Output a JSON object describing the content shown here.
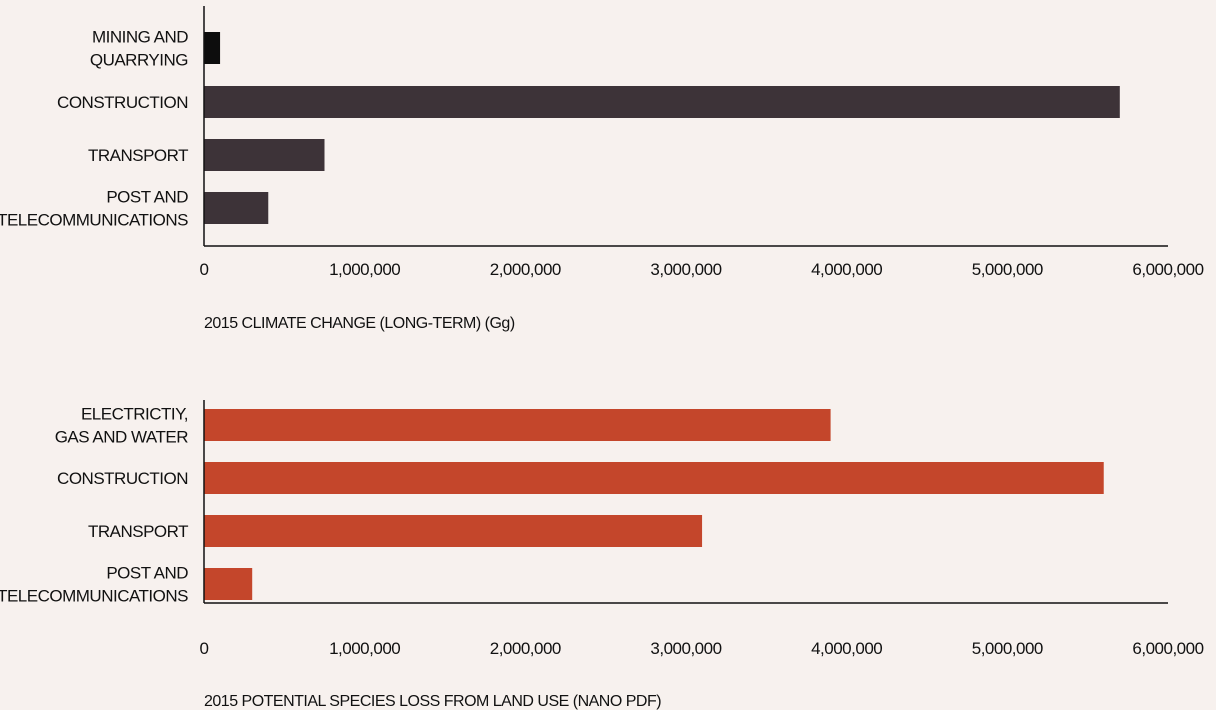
{
  "chart_data": [
    {
      "type": "bar",
      "orientation": "horizontal",
      "categories": [
        [
          "MINING AND",
          "QUARRYING"
        ],
        [
          "CONSTRUCTION"
        ],
        [
          "TRANSPORT"
        ],
        [
          "POST AND",
          "TELECOMMUNICATIONS"
        ]
      ],
      "values": [
        100000,
        5700000,
        750000,
        400000
      ],
      "bar_colors": [
        "#0d0d0d",
        "#3d3338",
        "#3d3338",
        "#3d3338"
      ],
      "xlim": [
        0,
        6000000
      ],
      "xticks": [
        "0",
        "1,000,000",
        "2,000,000",
        "3,000,000",
        "4,000,000",
        "5,000,000",
        "6,000,000"
      ],
      "xlabel": "2015 CLIMATE CHANGE (LONG-TERM) (Gg)",
      "ylabel": "",
      "title": "",
      "grid": false,
      "legend": "none"
    },
    {
      "type": "bar",
      "orientation": "horizontal",
      "categories": [
        [
          "ELECTRICTIY,",
          "GAS AND WATER"
        ],
        [
          "CONSTRUCTION"
        ],
        [
          "TRANSPORT"
        ],
        [
          "POST AND",
          "TELECOMMUNICATIONS"
        ]
      ],
      "values": [
        3900000,
        5600000,
        3100000,
        300000
      ],
      "bar_colors": [
        "#c4462b",
        "#c4462b",
        "#c4462b",
        "#c4462b"
      ],
      "xlim": [
        0,
        6000000
      ],
      "xticks": [
        "0",
        "1,000,000",
        "2,000,000",
        "3,000,000",
        "4,000,000",
        "5,000,000",
        "6,000,000"
      ],
      "xlabel": "2015 POTENTIAL SPECIES LOSS FROM LAND USE (NANO PDF)",
      "ylabel": "",
      "title": "",
      "grid": false,
      "legend": "none"
    }
  ],
  "colors": {
    "background": "#f7f1ee",
    "axis": "#111111",
    "text": "#111111"
  }
}
